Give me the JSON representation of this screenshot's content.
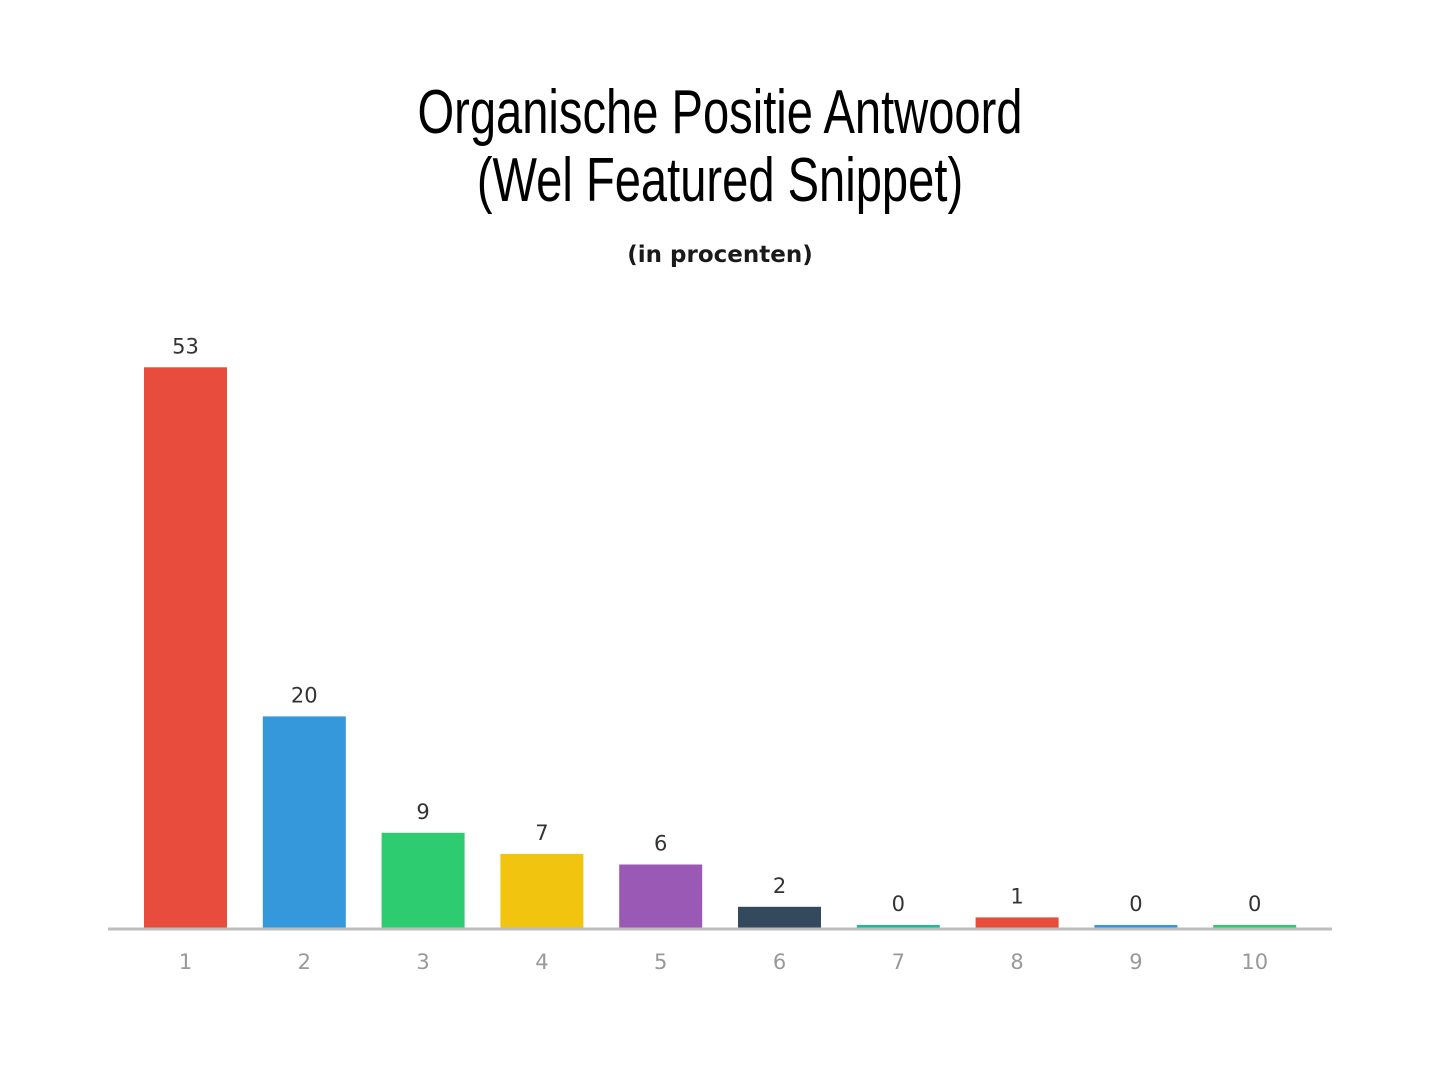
{
  "chart_data": {
    "type": "bar",
    "title_lines": [
      "Organische Positie Antwoord",
      "(Wel Featured Snippet)"
    ],
    "subtitle": "(in procenten)",
    "xlabel": "",
    "ylabel": "",
    "categories": [
      "1",
      "2",
      "3",
      "4",
      "5",
      "6",
      "7",
      "8",
      "9",
      "10"
    ],
    "values": [
      53,
      20,
      9,
      7,
      6,
      2,
      0,
      1,
      0,
      0
    ],
    "data_labels": [
      "53",
      "20",
      "9",
      "7",
      "6",
      "2",
      "0",
      "1",
      "0",
      "0"
    ],
    "colors": [
      "#e74c3c",
      "#3498db",
      "#2ecc71",
      "#f1c40f",
      "#9b59b6",
      "#34495e",
      "#1abc9c",
      "#e74c3c",
      "#3498db",
      "#2ecc71"
    ],
    "grid": false,
    "legend": "none",
    "axis_color": "#bdbdbd"
  }
}
